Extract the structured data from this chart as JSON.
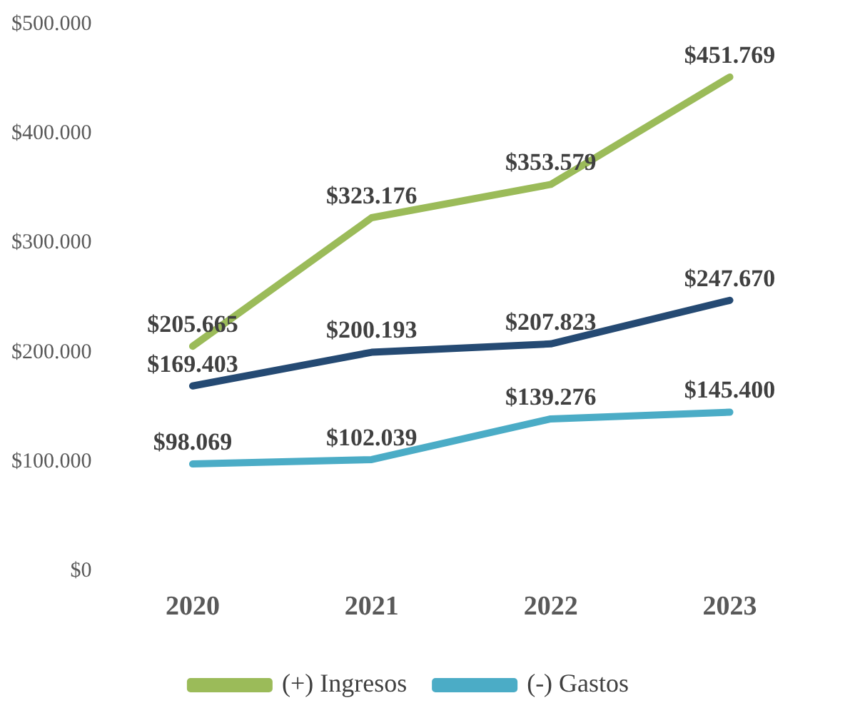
{
  "chart_data": {
    "type": "line",
    "categories": [
      "2020",
      "2021",
      "2022",
      "2023"
    ],
    "series": [
      {
        "name": "(+) Ingresos",
        "color": "#9bbb59",
        "values": [
          205665,
          323176,
          353579,
          451769
        ],
        "value_labels": [
          "$205.665",
          "$323.176",
          "$353.579",
          "$451.769"
        ]
      },
      {
        "color": "#254a73",
        "values": [
          169403,
          200193,
          207823,
          247670
        ],
        "value_labels": [
          "$169.403",
          "$200.193",
          "$207.823",
          "$247.670"
        ]
      },
      {
        "name": "(-) Gastos",
        "color": "#4bacc6",
        "values": [
          98069,
          102039,
          139276,
          145400
        ],
        "value_labels": [
          "$98.069",
          "$102.039",
          "$139.276",
          "$145.400"
        ]
      }
    ],
    "ylim": [
      0,
      500000
    ],
    "yticks": [
      {
        "value": 0,
        "label": "$0"
      },
      {
        "value": 100000,
        "label": "$100.000"
      },
      {
        "value": 200000,
        "label": "$200.000"
      },
      {
        "value": 300000,
        "label": "$300.000"
      },
      {
        "value": 400000,
        "label": "$400.000"
      },
      {
        "value": 500000,
        "label": "$500.000"
      }
    ],
    "grid": false,
    "legend": "bottom",
    "marker": "none",
    "line_style": "solid"
  }
}
